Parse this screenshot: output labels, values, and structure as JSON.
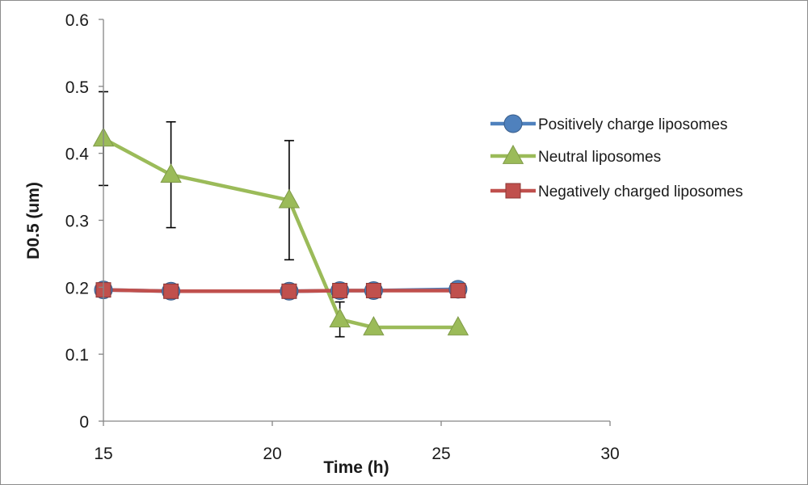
{
  "chart_data": {
    "type": "line",
    "title": "",
    "xlabel": "Time (h)",
    "ylabel": "D0.5 (um)",
    "xlim": [
      15,
      30
    ],
    "ylim": [
      0,
      0.6
    ],
    "xticks": [
      15,
      20,
      25,
      30
    ],
    "yticks": [
      0,
      0.1,
      0.2,
      0.3,
      0.4,
      0.5,
      0.6
    ],
    "grid": false,
    "legend_position": "right",
    "series": [
      {
        "name": "Positively charge liposomes",
        "marker": "circle",
        "color": "#4f81bd",
        "x": [
          15,
          17,
          20.5,
          22,
          23,
          25.5
        ],
        "y": [
          0.196,
          0.194,
          0.194,
          0.195,
          0.195,
          0.197
        ]
      },
      {
        "name": "Neutral liposomes",
        "marker": "triangle",
        "color": "#9bbb59",
        "x": [
          15,
          17,
          20.5,
          22,
          23,
          25.5
        ],
        "y": [
          0.422,
          0.368,
          0.33,
          0.152,
          0.14,
          0.14
        ],
        "error": [
          0.07,
          0.079,
          0.089,
          0.026,
          0,
          0
        ]
      },
      {
        "name": "Negatively charged liposomes",
        "marker": "square",
        "color": "#c0504d",
        "x": [
          15,
          17,
          20.5,
          22,
          23,
          25.5
        ],
        "y": [
          0.196,
          0.194,
          0.194,
          0.195,
          0.195,
          0.195
        ]
      }
    ]
  }
}
